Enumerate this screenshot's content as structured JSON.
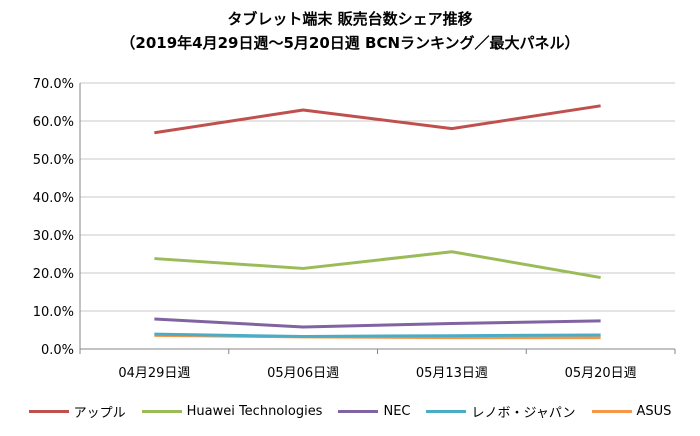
{
  "chart_data": {
    "type": "line",
    "title": "タブレット端末 販売台数シェア推移",
    "subtitle": "（2019年4月29日週～5月20日週  BCNランキング／最大パネル）",
    "categories": [
      "04月29日週",
      "05月06日週",
      "05月13日週",
      "05月20日週"
    ],
    "ylim": [
      0,
      70
    ],
    "yticks": [
      "0.0%",
      "10.0%",
      "20.0%",
      "30.0%",
      "40.0%",
      "50.0%",
      "60.0%",
      "70.0%"
    ],
    "grid": true,
    "legend_position": "bottom",
    "series": [
      {
        "name": "アップル",
        "color": "#c0504d",
        "values": [
          56.9,
          62.9,
          58.0,
          64.0
        ]
      },
      {
        "name": "Huawei Technologies",
        "color": "#9bbb59",
        "values": [
          23.8,
          21.2,
          25.6,
          18.8
        ]
      },
      {
        "name": "NEC",
        "color": "#8064a2",
        "values": [
          7.9,
          5.8,
          6.7,
          7.4
        ]
      },
      {
        "name": "レノボ・ジャパン",
        "color": "#4bacc6",
        "values": [
          3.9,
          3.3,
          3.5,
          3.7
        ]
      },
      {
        "name": "ASUS",
        "color": "#f79646",
        "values": [
          3.6,
          3.2,
          3.0,
          3.0
        ]
      }
    ]
  }
}
